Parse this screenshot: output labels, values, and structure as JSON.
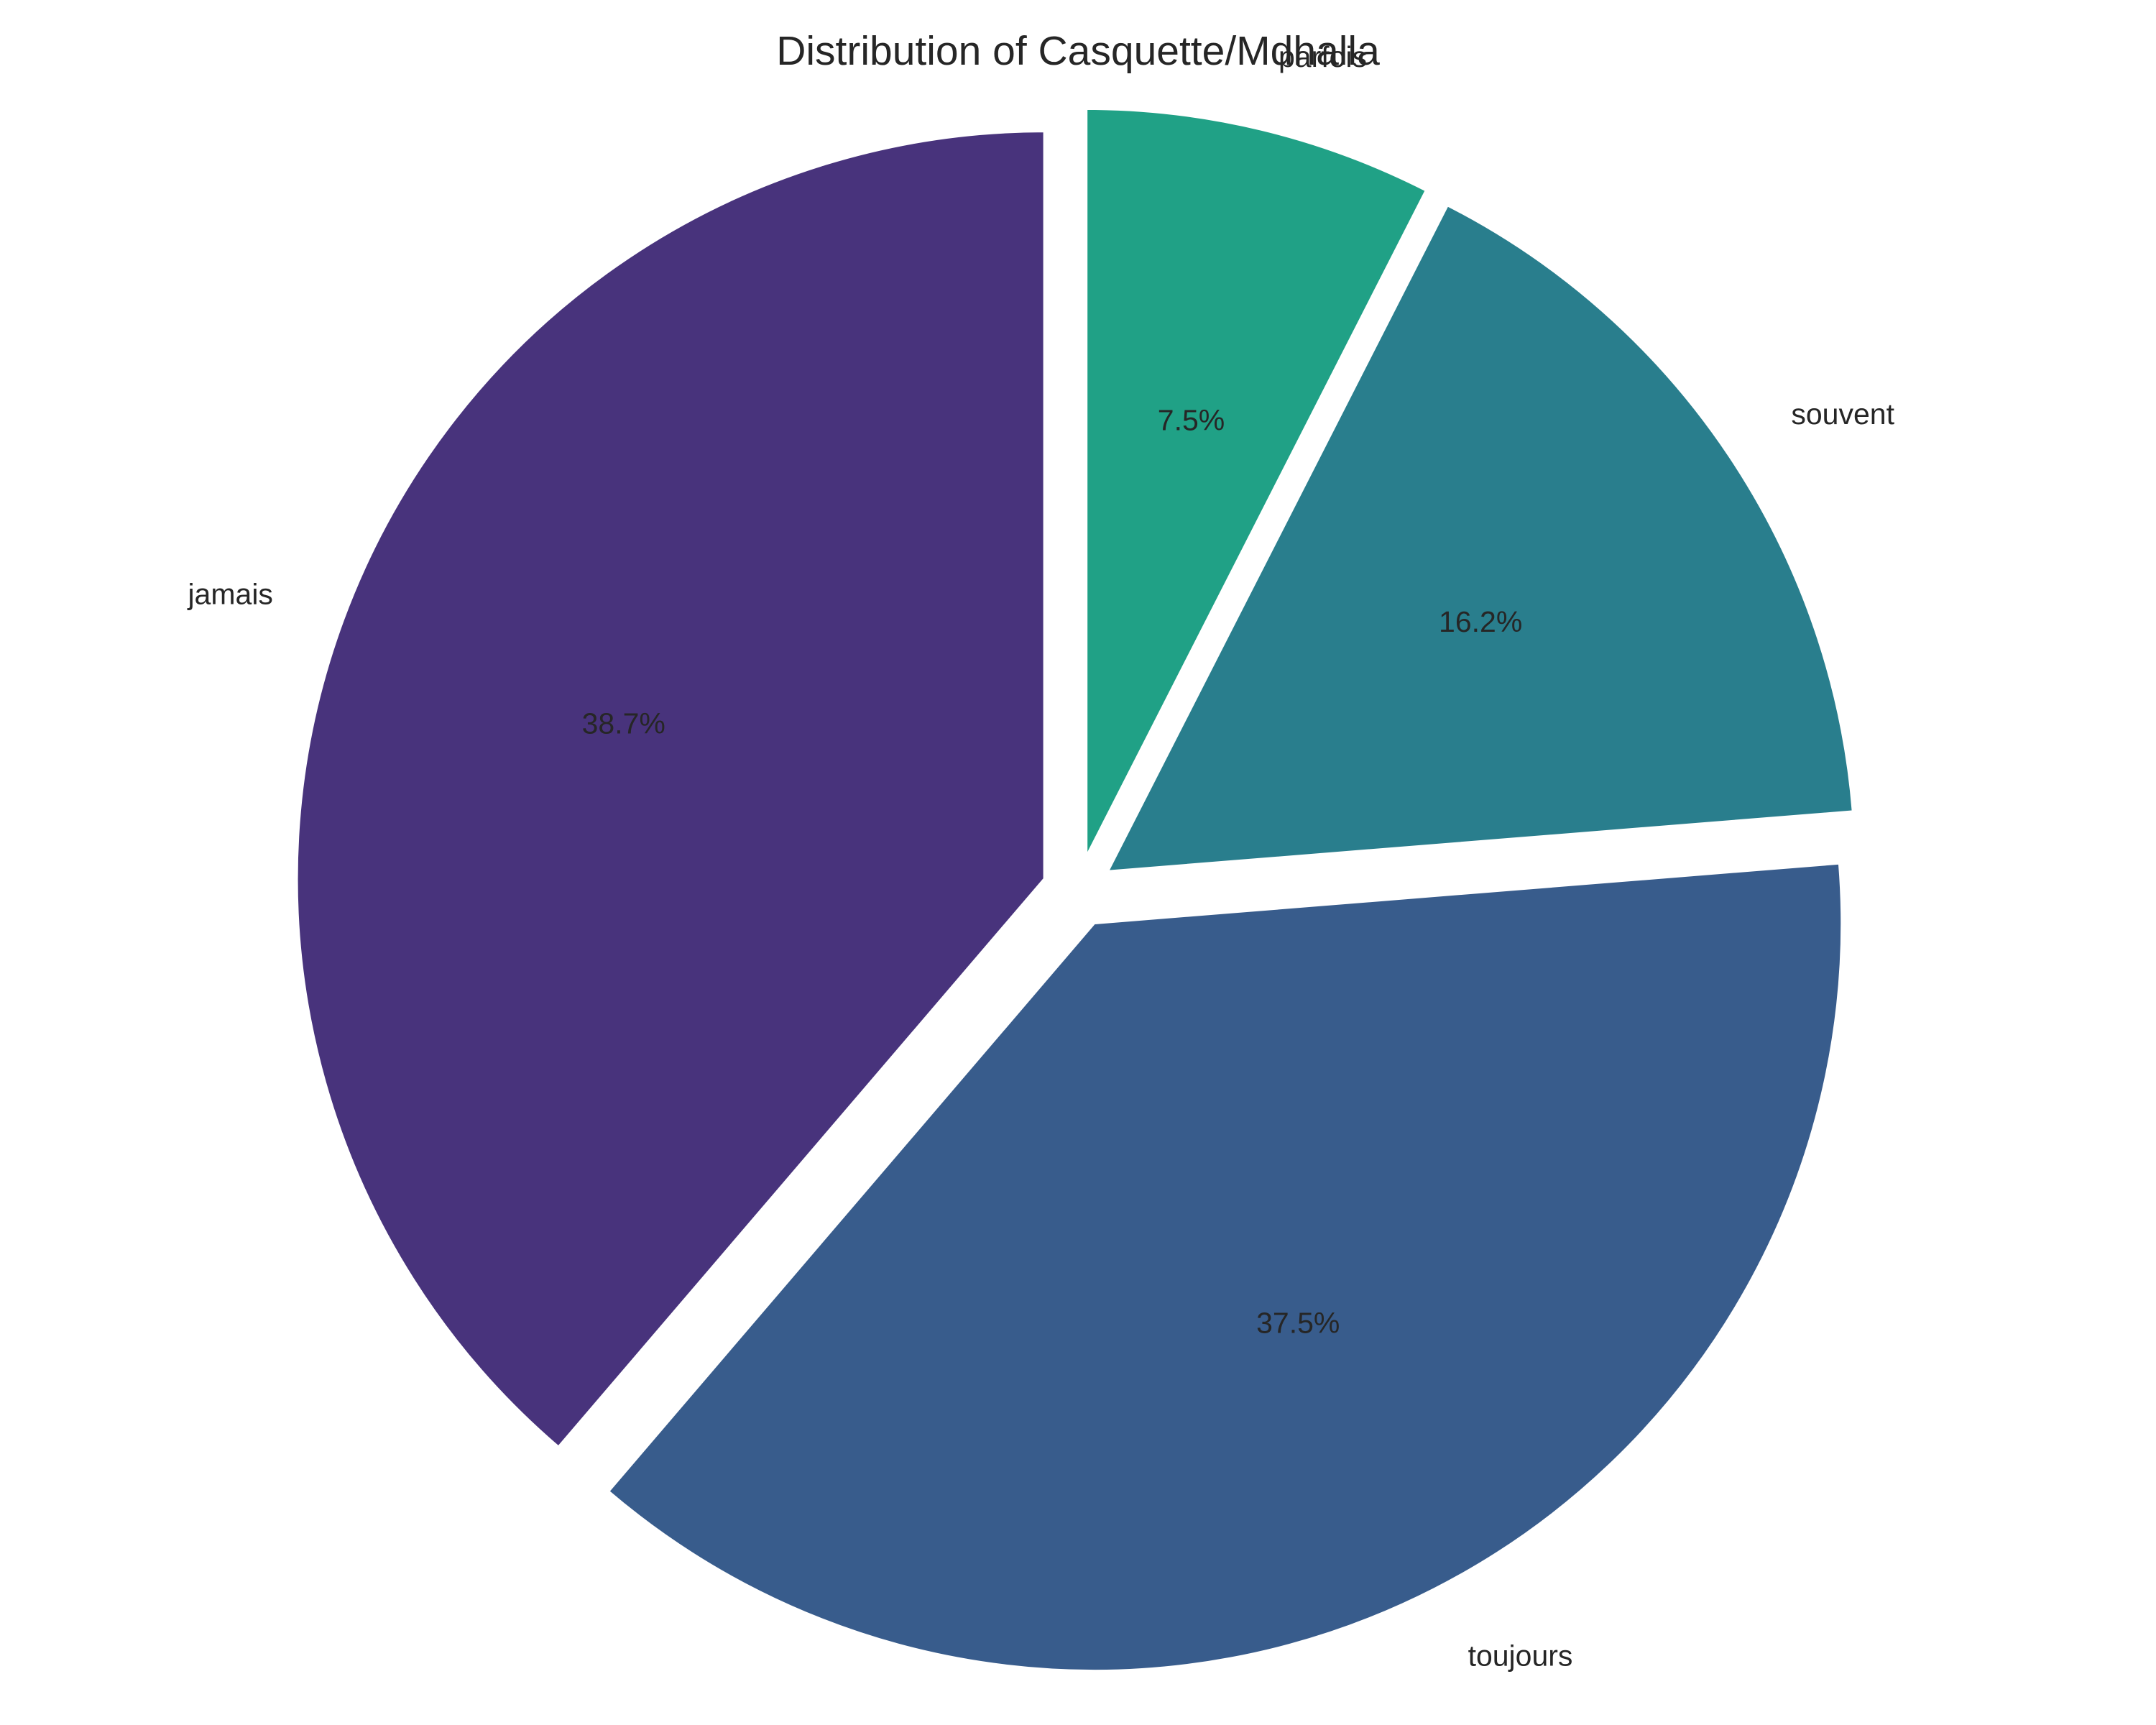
{
  "chart_data": {
    "type": "pie",
    "title": "Distribution of Casquette/Mdhalla",
    "categories": [
      "jamais",
      "toujours",
      "souvent",
      "parfois"
    ],
    "values": [
      38.7,
      37.5,
      16.2,
      7.5
    ],
    "value_labels": [
      "38.7%",
      "37.5%",
      "16.2%",
      "7.5%"
    ],
    "colors": [
      "#48337c",
      "#385c8c",
      "#297e8d",
      "#20a186"
    ],
    "start_angle_deg": 90,
    "direction": "counterclockwise",
    "exploded": true,
    "legend": "none"
  }
}
